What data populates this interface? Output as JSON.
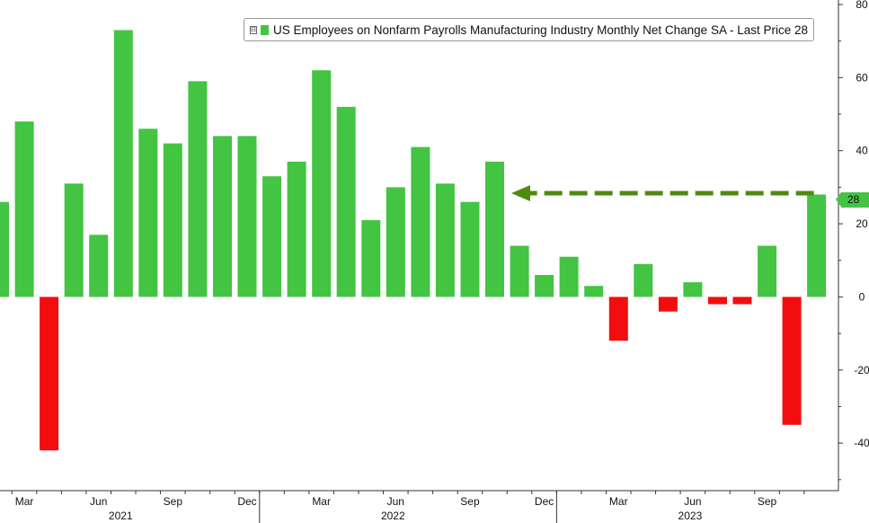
{
  "chart_data": {
    "type": "bar",
    "legend": "US Employees on Nonfarm Payrolls Manufacturing Industry Monthly Net Change SA - Last Price 28",
    "last_value_label": "28",
    "colors": {
      "positive": "#43c443",
      "negative": "#f20e0e",
      "arrow": "#4f8a10",
      "badge": "#46c247"
    },
    "categories": [
      "2021-02",
      "2021-03",
      "2021-04",
      "2021-05",
      "2021-06",
      "2021-07",
      "2021-08",
      "2021-09",
      "2021-10",
      "2021-11",
      "2021-12",
      "2022-01",
      "2022-02",
      "2022-03",
      "2022-04",
      "2022-05",
      "2022-06",
      "2022-07",
      "2022-08",
      "2022-09",
      "2022-10",
      "2022-11",
      "2022-12",
      "2023-01",
      "2023-02",
      "2023-03",
      "2023-04",
      "2023-05",
      "2023-06",
      "2023-07",
      "2023-08",
      "2023-09",
      "2023-10",
      "2023-11"
    ],
    "values": [
      26,
      48,
      -42,
      31,
      17,
      73,
      46,
      42,
      59,
      44,
      44,
      33,
      37,
      62,
      52,
      21,
      30,
      41,
      31,
      26,
      37,
      14,
      6,
      11,
      3,
      -12,
      9,
      -4,
      4,
      -2,
      -2,
      14,
      -35,
      28
    ],
    "ylim": [
      -53,
      80
    ],
    "yticks": [
      "80",
      "60",
      "40",
      "20",
      "0",
      "-20",
      "-40"
    ],
    "x_month_labels": [
      {
        "text": "Mar",
        "index": 1
      },
      {
        "text": "Jun",
        "index": 4
      },
      {
        "text": "Sep",
        "index": 7
      },
      {
        "text": "Dec",
        "index": 10
      },
      {
        "text": "Mar",
        "index": 13
      },
      {
        "text": "Jun",
        "index": 16
      },
      {
        "text": "Sep",
        "index": 19
      },
      {
        "text": "Dec",
        "index": 22
      },
      {
        "text": "Mar",
        "index": 25
      },
      {
        "text": "Jun",
        "index": 28
      },
      {
        "text": "Sep",
        "index": 31
      }
    ],
    "x_year_labels": [
      {
        "text": "2021",
        "index": 5
      },
      {
        "text": "2022",
        "index": 16
      },
      {
        "text": "2023",
        "index": 28
      }
    ],
    "reference_arrow_value": 28,
    "grid": false
  }
}
